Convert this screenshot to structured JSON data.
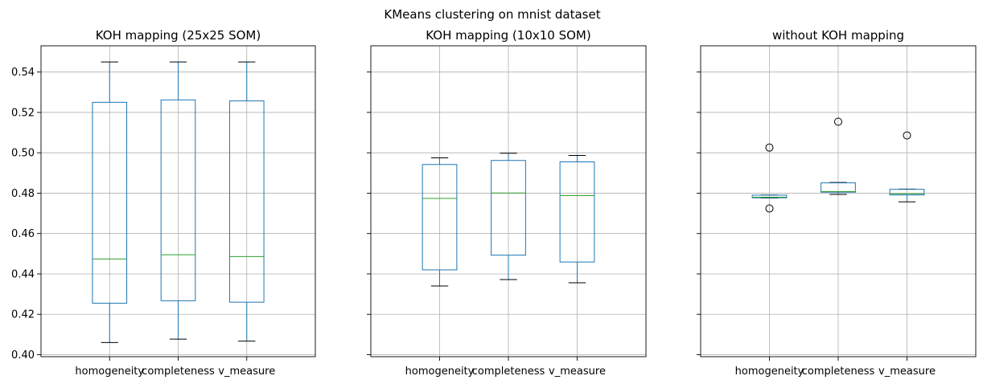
{
  "suptitle": "KMeans clustering on mnist dataset",
  "colors": {
    "box": "#1f77b4",
    "median": "#2ca02c",
    "whisker": "#1f77b4",
    "cap": "#000000",
    "grid": "#b0b0b0"
  },
  "chart_data": [
    {
      "type": "box",
      "title": "KOH mapping (25x25 SOM)",
      "categories": [
        "homogeneity",
        "completeness",
        "v_measure"
      ],
      "ylim": [
        0.399,
        0.553
      ],
      "yticks": [
        "0.40",
        "0.42",
        "0.44",
        "0.46",
        "0.48",
        "0.50",
        "0.52",
        "0.54"
      ],
      "grid": true,
      "boxes": [
        {
          "whislo": 0.406,
          "q1": 0.4255,
          "med": 0.4474,
          "q3": 0.525,
          "whishi": 0.545,
          "fliers": []
        },
        {
          "whislo": 0.4077,
          "q1": 0.4267,
          "med": 0.4495,
          "q3": 0.5262,
          "whishi": 0.545,
          "fliers": []
        },
        {
          "whislo": 0.4067,
          "q1": 0.426,
          "med": 0.4486,
          "q3": 0.5257,
          "whishi": 0.545,
          "fliers": []
        }
      ]
    },
    {
      "type": "box",
      "title": "KOH mapping (10x10 SOM)",
      "categories": [
        "homogeneity",
        "completeness",
        "v_measure"
      ],
      "ylim": [
        0.399,
        0.553
      ],
      "yticks": [
        "0.40",
        "0.42",
        "0.44",
        "0.46",
        "0.48",
        "0.50",
        "0.52",
        "0.54"
      ],
      "grid": true,
      "boxes": [
        {
          "whislo": 0.434,
          "q1": 0.442,
          "med": 0.4774,
          "q3": 0.4942,
          "whishi": 0.4975,
          "fliers": []
        },
        {
          "whislo": 0.4372,
          "q1": 0.4493,
          "med": 0.4801,
          "q3": 0.4962,
          "whishi": 0.4998,
          "fliers": []
        },
        {
          "whislo": 0.4356,
          "q1": 0.4459,
          "med": 0.4788,
          "q3": 0.4955,
          "whishi": 0.4987,
          "fliers": []
        }
      ]
    },
    {
      "type": "box",
      "title": "without KOH mapping",
      "categories": [
        "homogeneity",
        "completeness",
        "v_measure"
      ],
      "ylim": [
        0.399,
        0.553
      ],
      "yticks": [
        "0.40",
        "0.42",
        "0.44",
        "0.46",
        "0.48",
        "0.50",
        "0.52",
        "0.54"
      ],
      "grid": true,
      "boxes": [
        {
          "whislo": 0.4776,
          "q1": 0.4777,
          "med": 0.478,
          "q3": 0.479,
          "whishi": 0.4791,
          "fliers": [
            0.5026,
            0.4724
          ]
        },
        {
          "whislo": 0.4794,
          "q1": 0.4805,
          "med": 0.4808,
          "q3": 0.4851,
          "whishi": 0.4853,
          "fliers": [
            0.5154
          ]
        },
        {
          "whislo": 0.4757,
          "q1": 0.4791,
          "med": 0.4797,
          "q3": 0.4819,
          "whishi": 0.482,
          "fliers": [
            0.5086
          ]
        }
      ]
    }
  ]
}
